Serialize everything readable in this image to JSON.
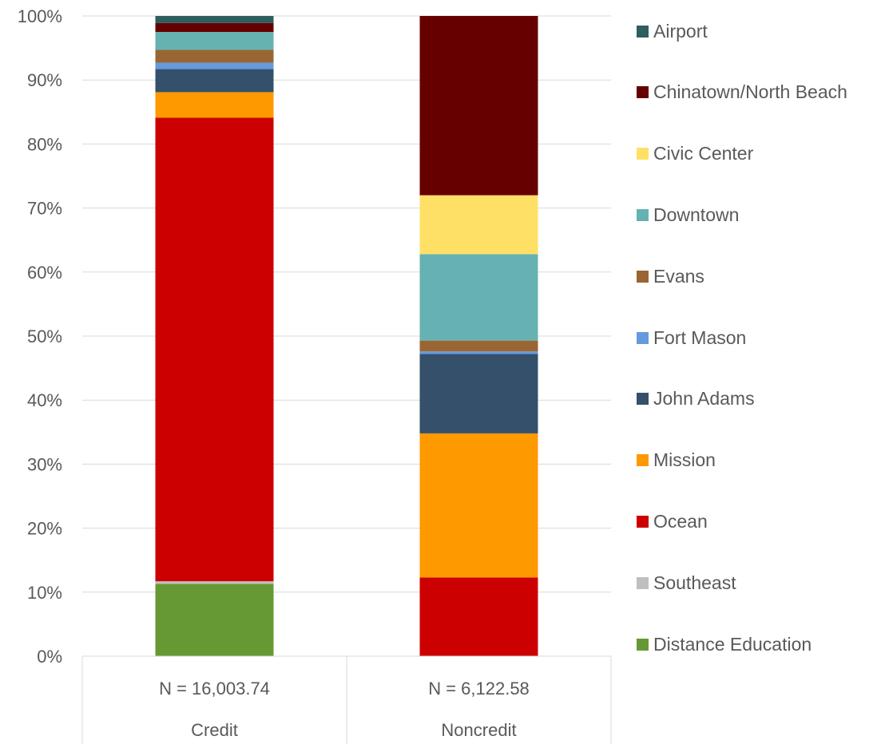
{
  "chart_data": {
    "type": "bar",
    "stacked": true,
    "percent": true,
    "ylim": [
      0,
      100
    ],
    "yticks": [
      "0%",
      "10%",
      "20%",
      "30%",
      "40%",
      "50%",
      "60%",
      "70%",
      "80%",
      "90%",
      "100%"
    ],
    "grid": true,
    "legend_position": "right",
    "categories": [
      "Credit",
      "Noncredit"
    ],
    "category_subtitles": [
      "N = 16,003.74",
      "N = 6,122.58"
    ],
    "series": [
      {
        "name": "Distance Education",
        "color": "#669933",
        "values": [
          11.3,
          0.0
        ]
      },
      {
        "name": "Southeast",
        "color": "#BFBFBF",
        "values": [
          0.4,
          0.0
        ]
      },
      {
        "name": "Ocean",
        "color": "#CC0000",
        "values": [
          72.4,
          12.3
        ]
      },
      {
        "name": "Mission",
        "color": "#FF9900",
        "values": [
          4.0,
          22.5
        ]
      },
      {
        "name": "John Adams",
        "color": "#34506B",
        "values": [
          3.6,
          12.4
        ]
      },
      {
        "name": "Fort Mason",
        "color": "#6699DD",
        "values": [
          1.0,
          0.4
        ]
      },
      {
        "name": "Evans",
        "color": "#996633",
        "values": [
          2.0,
          1.7
        ]
      },
      {
        "name": "Downtown",
        "color": "#66B2B2",
        "values": [
          2.8,
          13.5
        ]
      },
      {
        "name": "Civic Center",
        "color": "#FFE066",
        "values": [
          0.0,
          9.2
        ]
      },
      {
        "name": "Chinatown/North Beach",
        "color": "#660000",
        "values": [
          1.4,
          28.0
        ]
      },
      {
        "name": "Airport",
        "color": "#2E5E5E",
        "values": [
          1.1,
          0.0
        ]
      }
    ],
    "legend_order": [
      "Airport",
      "Chinatown/North Beach",
      "Civic Center",
      "Downtown",
      "Evans",
      "Fort Mason",
      "John Adams",
      "Mission",
      "Ocean",
      "Southeast",
      "Distance Education"
    ]
  }
}
